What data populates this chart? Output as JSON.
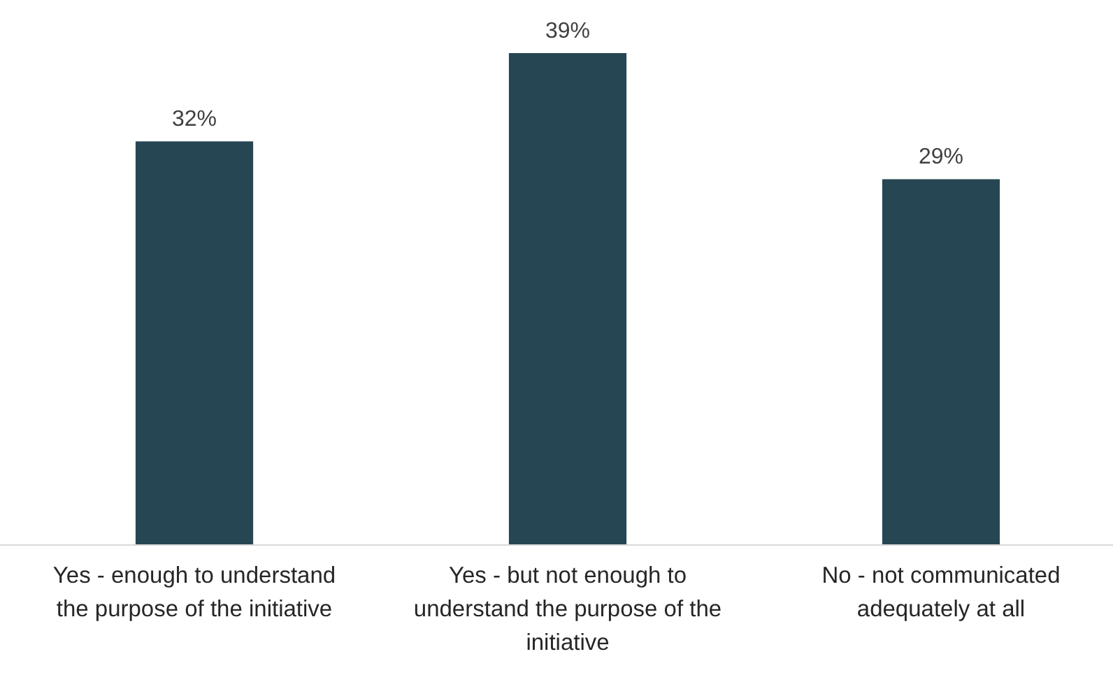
{
  "chart_data": {
    "type": "bar",
    "categories": [
      "Yes - enough to understand the purpose of the initiative",
      "Yes - but not enough to understand the purpose of the initiative",
      "No - not communicated adequately at all"
    ],
    "values": [
      32,
      39,
      29
    ],
    "color": "#264653",
    "value_labels": [
      "32%",
      "39%",
      "29%"
    ]
  }
}
